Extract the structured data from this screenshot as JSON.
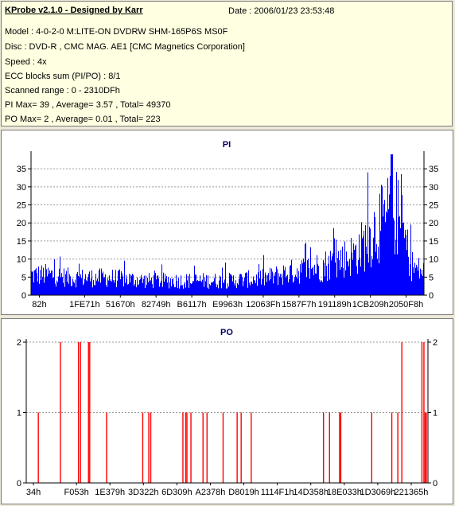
{
  "header": {
    "app_title": "KProbe v2.1.0 - Designed by Karr",
    "date": "Date : 2006/01/23 23:53:48",
    "lines": [
      "Model : 4-0-2-0 M:LITE-ON DVDRW SHM-165P6S MS0F",
      "Disc : DVD-R , CMC MAG. AE1 [CMC Magnetics Corporation]",
      "Speed : 4x",
      "ECC blocks sum (PI/PO) : 8/1",
      "Scanned range : 0 - 2310DFh",
      "PI Max= 39 , Average= 3.57 , Total= 49370",
      "PO Max= 2 , Average= 0.01 , Total= 223"
    ]
  },
  "chart_data": [
    {
      "type": "bar",
      "title": "PI",
      "color": "#0000ff",
      "ylim": [
        0,
        39
      ],
      "yticks": [
        0,
        5,
        10,
        15,
        20,
        25,
        30,
        35
      ],
      "xtick_labels": [
        "82h",
        "1FE71h",
        "51670h",
        "82749h",
        "B6117h",
        "E9963h",
        "12063Fh",
        "1587F7h",
        "191189h",
        "1CB209h",
        "2050F8h"
      ],
      "x_range": [
        "0h",
        "2310DFh"
      ],
      "grid": true,
      "envelope": [
        [
          0.0,
          7
        ],
        [
          0.05,
          7
        ],
        [
          0.1,
          6
        ],
        [
          0.2,
          6
        ],
        [
          0.3,
          5
        ],
        [
          0.4,
          5
        ],
        [
          0.5,
          5
        ],
        [
          0.6,
          6
        ],
        [
          0.66,
          8
        ],
        [
          0.7,
          9
        ],
        [
          0.74,
          10
        ],
        [
          0.78,
          12
        ],
        [
          0.82,
          14
        ],
        [
          0.85,
          18
        ],
        [
          0.87,
          22
        ],
        [
          0.88,
          24
        ],
        [
          0.9,
          25
        ],
        [
          0.91,
          28
        ],
        [
          0.92,
          30
        ],
        [
          0.93,
          28
        ],
        [
          0.94,
          24
        ],
        [
          0.95,
          20
        ],
        [
          0.96,
          14
        ],
        [
          0.97,
          10
        ],
        [
          0.98,
          9
        ],
        [
          1.0,
          8
        ]
      ],
      "peak": 39
    },
    {
      "type": "bar",
      "title": "PO",
      "color": "#ff0000",
      "ylim": [
        0,
        2
      ],
      "yticks": [
        0,
        1,
        2
      ],
      "xtick_labels": [
        "34h",
        "F053h",
        "1E379h",
        "3D322h",
        "6D309h",
        "A2378h",
        "D8019h",
        "1114F1h",
        "14D358h",
        "18E033h",
        "1D3069h",
        "221365h"
      ],
      "x_range": [
        "0h",
        "2310DFh"
      ],
      "grid": true,
      "events": [
        [
          0.03,
          1
        ],
        [
          0.085,
          2
        ],
        [
          0.13,
          2
        ],
        [
          0.135,
          2
        ],
        [
          0.155,
          2
        ],
        [
          0.158,
          2
        ],
        [
          0.2,
          1
        ],
        [
          0.29,
          1
        ],
        [
          0.305,
          1
        ],
        [
          0.31,
          1
        ],
        [
          0.39,
          1
        ],
        [
          0.397,
          1
        ],
        [
          0.4,
          1
        ],
        [
          0.41,
          1
        ],
        [
          0.44,
          1
        ],
        [
          0.45,
          1
        ],
        [
          0.49,
          1
        ],
        [
          0.525,
          1
        ],
        [
          0.535,
          1
        ],
        [
          0.56,
          1
        ],
        [
          0.74,
          1
        ],
        [
          0.755,
          1
        ],
        [
          0.78,
          1
        ],
        [
          0.783,
          1
        ],
        [
          0.86,
          1
        ],
        [
          0.91,
          1
        ],
        [
          0.925,
          1
        ],
        [
          0.935,
          2
        ],
        [
          0.985,
          2
        ],
        [
          0.99,
          2
        ],
        [
          0.993,
          1
        ],
        [
          0.996,
          1
        ]
      ]
    }
  ]
}
